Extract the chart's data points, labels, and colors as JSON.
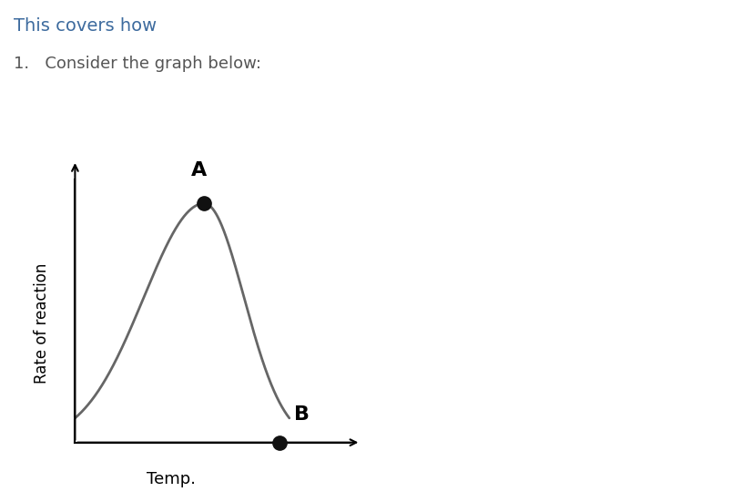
{
  "title_color": "#3d6b9e",
  "pH_color": "#2e7d4f",
  "subtitle_color": "#555555",
  "ylabel": "Rate of reaction",
  "xlabel": "Temp.",
  "background_color": "#ffffff",
  "curve_color": "#666666",
  "point_color": "#111111",
  "label_A": "A",
  "label_B": "B",
  "title_fontsize": 14,
  "subtitle_fontsize": 13,
  "axis_label_fontsize": 13,
  "annotation_fontsize": 16,
  "ylabel_fontsize": 12
}
